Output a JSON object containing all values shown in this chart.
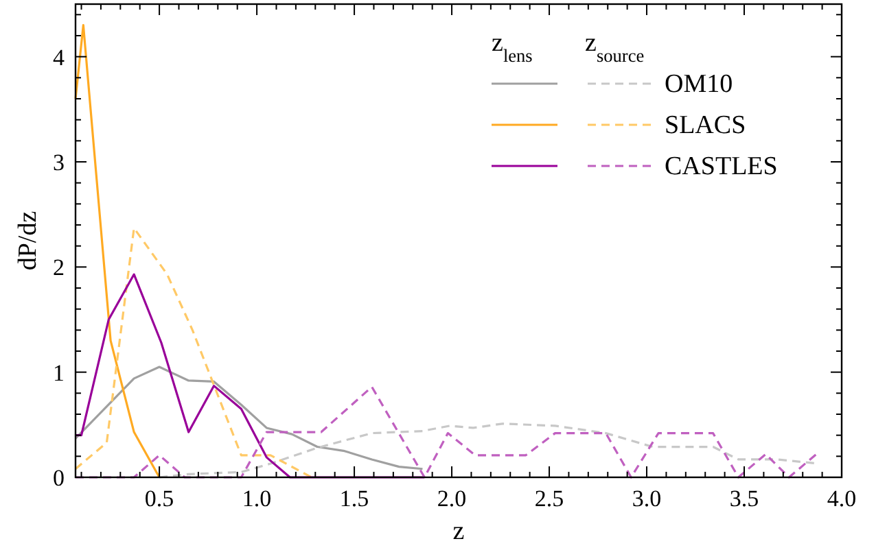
{
  "chart_data": {
    "type": "line",
    "xlabel": "z",
    "ylabel": "dP/dz",
    "xlim": [
      0.07,
      4.0
    ],
    "ylim": [
      0,
      4.5
    ],
    "xticks": [
      {
        "value": 0.1,
        "label": null
      },
      {
        "value": 0.2,
        "label": null
      },
      {
        "value": 0.3,
        "label": null
      },
      {
        "value": 0.4,
        "label": null
      },
      {
        "value": 0.5,
        "label": "0.5"
      },
      {
        "value": 0.6,
        "label": null
      },
      {
        "value": 0.7,
        "label": null
      },
      {
        "value": 0.8,
        "label": null
      },
      {
        "value": 0.9,
        "label": null
      },
      {
        "value": 1.0,
        "label": "1.0"
      },
      {
        "value": 1.1,
        "label": null
      },
      {
        "value": 1.2,
        "label": null
      },
      {
        "value": 1.3,
        "label": null
      },
      {
        "value": 1.4,
        "label": null
      },
      {
        "value": 1.5,
        "label": "1.5"
      },
      {
        "value": 1.6,
        "label": null
      },
      {
        "value": 1.7,
        "label": null
      },
      {
        "value": 1.8,
        "label": null
      },
      {
        "value": 1.9,
        "label": null
      },
      {
        "value": 2.0,
        "label": "2.0"
      },
      {
        "value": 2.1,
        "label": null
      },
      {
        "value": 2.2,
        "label": null
      },
      {
        "value": 2.3,
        "label": null
      },
      {
        "value": 2.4,
        "label": null
      },
      {
        "value": 2.5,
        "label": "2.5"
      },
      {
        "value": 2.6,
        "label": null
      },
      {
        "value": 2.7,
        "label": null
      },
      {
        "value": 2.8,
        "label": null
      },
      {
        "value": 2.9,
        "label": null
      },
      {
        "value": 3.0,
        "label": "3.0"
      },
      {
        "value": 3.1,
        "label": null
      },
      {
        "value": 3.2,
        "label": null
      },
      {
        "value": 3.3,
        "label": null
      },
      {
        "value": 3.4,
        "label": null
      },
      {
        "value": 3.5,
        "label": "3.5"
      },
      {
        "value": 3.6,
        "label": null
      },
      {
        "value": 3.7,
        "label": null
      },
      {
        "value": 3.8,
        "label": null
      },
      {
        "value": 3.9,
        "label": null
      },
      {
        "value": 4.0,
        "label": "4.0"
      }
    ],
    "yticks": [
      0,
      {
        "value": 0.2,
        "label": null
      },
      {
        "value": 0.4,
        "label": null
      },
      {
        "value": 0.6,
        "label": null
      },
      {
        "value": 0.8,
        "label": null
      },
      1,
      {
        "value": 1.2,
        "label": null
      },
      {
        "value": 1.4,
        "label": null
      },
      {
        "value": 1.6,
        "label": null
      },
      {
        "value": 1.8,
        "label": null
      },
      2,
      {
        "value": 2.2,
        "label": null
      },
      {
        "value": 2.4,
        "label": null
      },
      {
        "value": 2.6,
        "label": null
      },
      {
        "value": 2.8,
        "label": null
      },
      3,
      {
        "value": 3.2,
        "label": null
      },
      {
        "value": 3.4,
        "label": null
      },
      {
        "value": 3.6,
        "label": null
      },
      {
        "value": 3.8,
        "label": null
      },
      4,
      {
        "value": 4.2,
        "label": null
      },
      {
        "value": 4.4,
        "label": null
      }
    ],
    "grid": false,
    "legend": "top right",
    "annotations": [
      "z$_{lens}$",
      "z$_{source}$"
    ],
    "series": [
      {
        "color": "#a0a0a0",
        "line_style": "solid",
        "x": [
          0.07,
          0.37,
          0.5,
          0.65,
          0.78,
          0.92,
          1.05,
          1.18,
          1.31,
          1.45,
          1.59,
          1.73,
          1.85
        ],
        "values": [
          0.37,
          0.94,
          1.05,
          0.92,
          0.91,
          0.69,
          0.47,
          0.41,
          0.29,
          0.25,
          0.17,
          0.1,
          0.08
        ]
      },
      {
        "name": "OM10",
        "color": "#c8c8c8",
        "line_style": "dashed",
        "x": [
          0.5,
          0.65,
          0.92,
          1.07,
          1.31,
          1.59,
          1.85,
          1.99,
          2.11,
          2.26,
          2.53,
          2.79,
          3.03,
          3.34,
          3.47,
          3.67,
          3.88
        ],
        "values": [
          0,
          0.03,
          0.05,
          0.13,
          0.28,
          0.42,
          0.44,
          0.49,
          0.47,
          0.51,
          0.49,
          0.42,
          0.29,
          0.29,
          0.17,
          0.17,
          0.13
        ]
      },
      {
        "color": "#ffaa22",
        "line_style": "solid",
        "x": [
          0.07,
          0.11,
          0.25,
          0.37,
          0.5
        ],
        "values": [
          3.6,
          4.3,
          1.3,
          0.43,
          0
        ]
      },
      {
        "name": "SLACS",
        "color": "#ffc966",
        "line_style": "dashed",
        "x": [
          0.07,
          0.23,
          0.37,
          0.54,
          0.67,
          0.92,
          1.07,
          1.28
        ],
        "values": [
          0.08,
          0.33,
          2.37,
          1.93,
          1.4,
          0.21,
          0.21,
          0
        ]
      },
      {
        "color": "#990099",
        "line_style": "solid",
        "x": [
          0.07,
          0.1,
          0.24,
          0.37,
          0.51,
          0.65,
          0.78,
          0.92,
          1.05,
          1.17,
          1.86
        ],
        "values": [
          0.4,
          0.4,
          1.5,
          1.93,
          1.28,
          0.43,
          0.87,
          0.65,
          0.19,
          0,
          0
        ]
      },
      {
        "name": "CASTLES",
        "color": "#c060c0",
        "line_style": "dashed",
        "x": [
          0.07,
          0.37,
          0.5,
          0.63,
          0.92,
          1.05,
          1.33,
          1.59,
          1.86,
          1.98,
          2.12,
          2.38,
          2.53,
          2.79,
          2.92,
          3.06,
          3.34,
          3.47,
          3.61,
          3.73,
          3.87
        ],
        "values": [
          0,
          0,
          0.21,
          0,
          0,
          0.43,
          0.43,
          0.86,
          0,
          0.42,
          0.21,
          0.21,
          0.42,
          0.42,
          0,
          0.42,
          0.42,
          0,
          0.22,
          0,
          0.22
        ]
      }
    ]
  }
}
